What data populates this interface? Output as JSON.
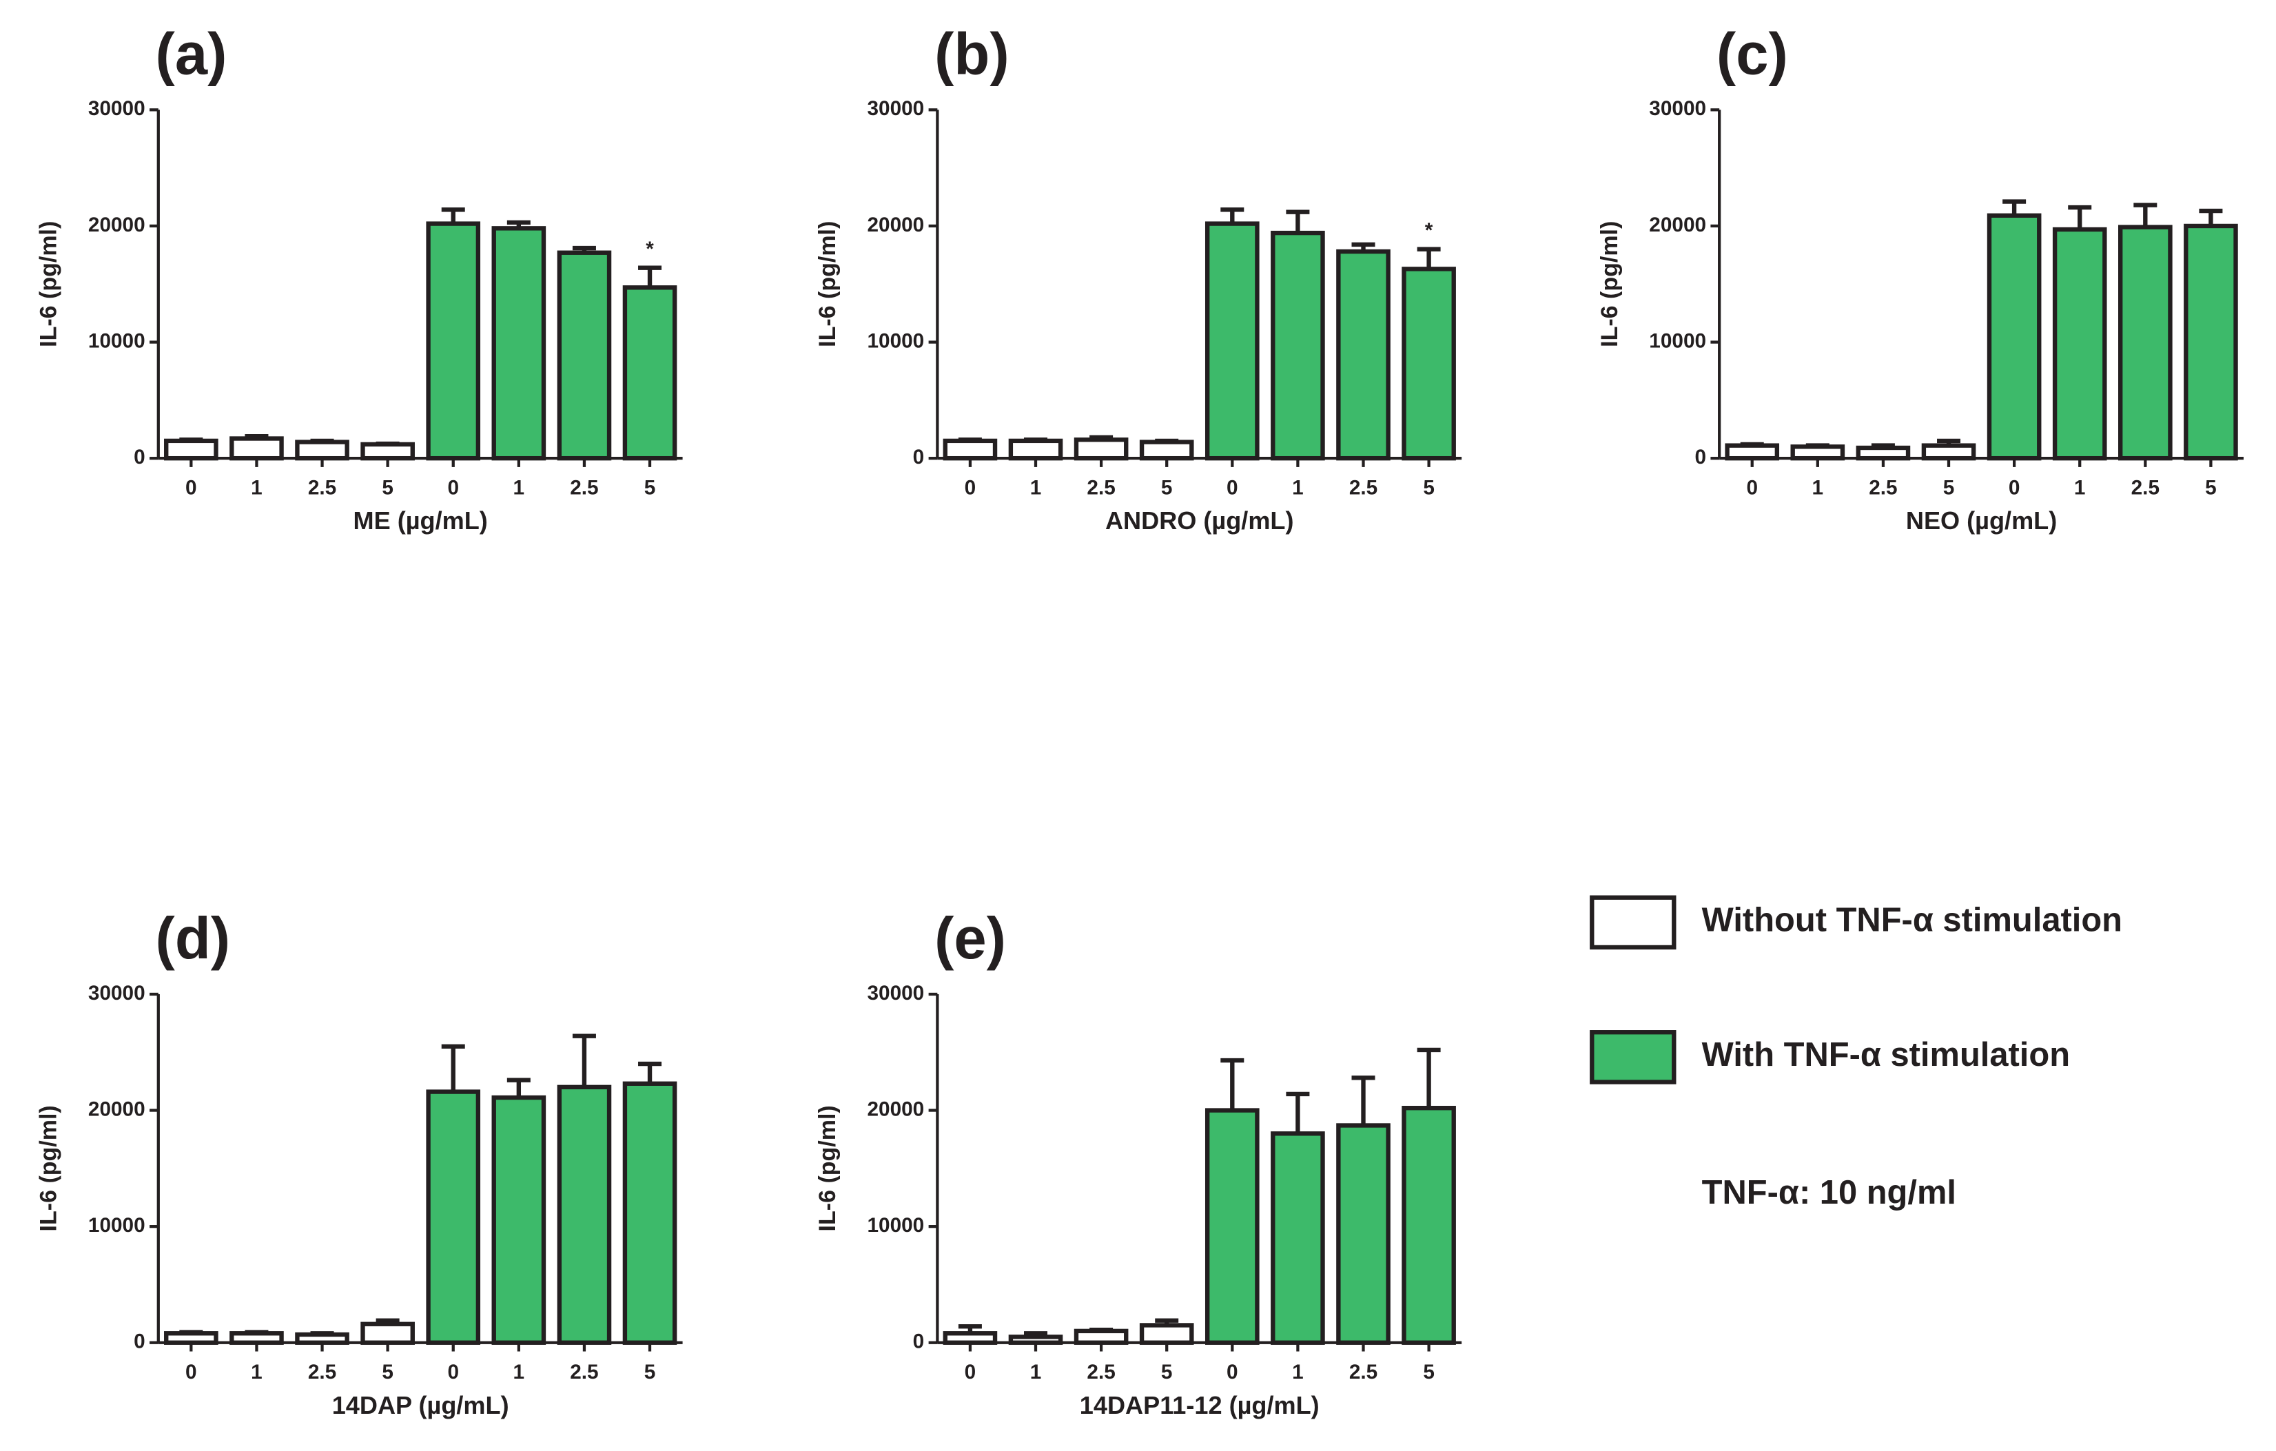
{
  "chart_data": [
    {
      "type": "bar",
      "panel": "(a)",
      "xlabel": "ME (µg/mL)",
      "ylabel": "IL-6 (pg/ml)",
      "categories": [
        "0",
        "1",
        "2.5",
        "5",
        "0",
        "1",
        "2.5",
        "5"
      ],
      "values": [
        1500,
        1700,
        1400,
        1200,
        20200,
        19800,
        17700,
        14700
      ],
      "errors": [
        100,
        200,
        100,
        50,
        1200,
        500,
        400,
        1700
      ],
      "colors": [
        "#ffffff",
        "#ffffff",
        "#ffffff",
        "#ffffff",
        "#3dba6a",
        "#3dba6a",
        "#3dba6a",
        "#3dba6a"
      ],
      "significance": [
        null,
        null,
        null,
        null,
        null,
        null,
        null,
        "*"
      ],
      "ylim": [
        0,
        30000
      ],
      "yticks": [
        0,
        10000,
        20000,
        30000
      ]
    },
    {
      "type": "bar",
      "panel": "(b)",
      "xlabel": "ANDRO (µg/mL)",
      "ylabel": "IL-6 (pg/ml)",
      "categories": [
        "0",
        "1",
        "2.5",
        "5",
        "0",
        "1",
        "2.5",
        "5"
      ],
      "values": [
        1500,
        1500,
        1600,
        1400,
        20200,
        19400,
        17800,
        16300
      ],
      "errors": [
        100,
        100,
        200,
        100,
        1200,
        1800,
        600,
        1700
      ],
      "colors": [
        "#ffffff",
        "#ffffff",
        "#ffffff",
        "#ffffff",
        "#3dba6a",
        "#3dba6a",
        "#3dba6a",
        "#3dba6a"
      ],
      "significance": [
        null,
        null,
        null,
        null,
        null,
        null,
        null,
        "*"
      ],
      "ylim": [
        0,
        30000
      ],
      "yticks": [
        0,
        10000,
        20000,
        30000
      ]
    },
    {
      "type": "bar",
      "panel": "(c)",
      "xlabel": "NEO (µg/mL)",
      "ylabel": "IL-6 (pg/ml)",
      "categories": [
        "0",
        "1",
        "2.5",
        "5",
        "0",
        "1",
        "2.5",
        "5"
      ],
      "values": [
        1100,
        1000,
        900,
        1100,
        20900,
        19700,
        19900,
        20000
      ],
      "errors": [
        100,
        100,
        200,
        400,
        1200,
        1900,
        1900,
        1300
      ],
      "colors": [
        "#ffffff",
        "#ffffff",
        "#ffffff",
        "#ffffff",
        "#3dba6a",
        "#3dba6a",
        "#3dba6a",
        "#3dba6a"
      ],
      "ylim": [
        0,
        30000
      ],
      "yticks": [
        0,
        10000,
        20000,
        30000
      ]
    },
    {
      "type": "bar",
      "panel": "(d)",
      "xlabel": "14DAP (µg/mL)",
      "ylabel": "IL-6 (pg/ml)",
      "categories": [
        "0",
        "1",
        "2.5",
        "5",
        "0",
        "1",
        "2.5",
        "5"
      ],
      "values": [
        800,
        800,
        700,
        1600,
        21600,
        21100,
        22000,
        22300
      ],
      "errors": [
        100,
        100,
        100,
        300,
        3900,
        1500,
        4400,
        1700
      ],
      "colors": [
        "#ffffff",
        "#ffffff",
        "#ffffff",
        "#ffffff",
        "#3dba6a",
        "#3dba6a",
        "#3dba6a",
        "#3dba6a"
      ],
      "ylim": [
        0,
        30000
      ],
      "yticks": [
        0,
        10000,
        20000,
        30000
      ]
    },
    {
      "type": "bar",
      "panel": "(e)",
      "xlabel": "14DAP11-12 (µg/mL)",
      "ylabel": "IL-6 (pg/ml)",
      "categories": [
        "0",
        "1",
        "2.5",
        "5",
        "0",
        "1",
        "2.5",
        "5"
      ],
      "values": [
        800,
        500,
        1000,
        1500,
        20000,
        18000,
        18700,
        20200
      ],
      "errors": [
        600,
        300,
        100,
        400,
        4300,
        3400,
        4100,
        5000
      ],
      "colors": [
        "#ffffff",
        "#ffffff",
        "#ffffff",
        "#ffffff",
        "#3dba6a",
        "#3dba6a",
        "#3dba6a",
        "#3dba6a"
      ],
      "ylim": [
        0,
        30000
      ],
      "yticks": [
        0,
        10000,
        20000,
        30000
      ]
    }
  ],
  "legend": {
    "items": [
      {
        "name": "Without TNF-α stimulation",
        "color": "#ffffff"
      },
      {
        "name": "With TNF-α stimulation",
        "color": "#3dba6a"
      }
    ],
    "note": "TNF-α: 10 ng/ml"
  }
}
